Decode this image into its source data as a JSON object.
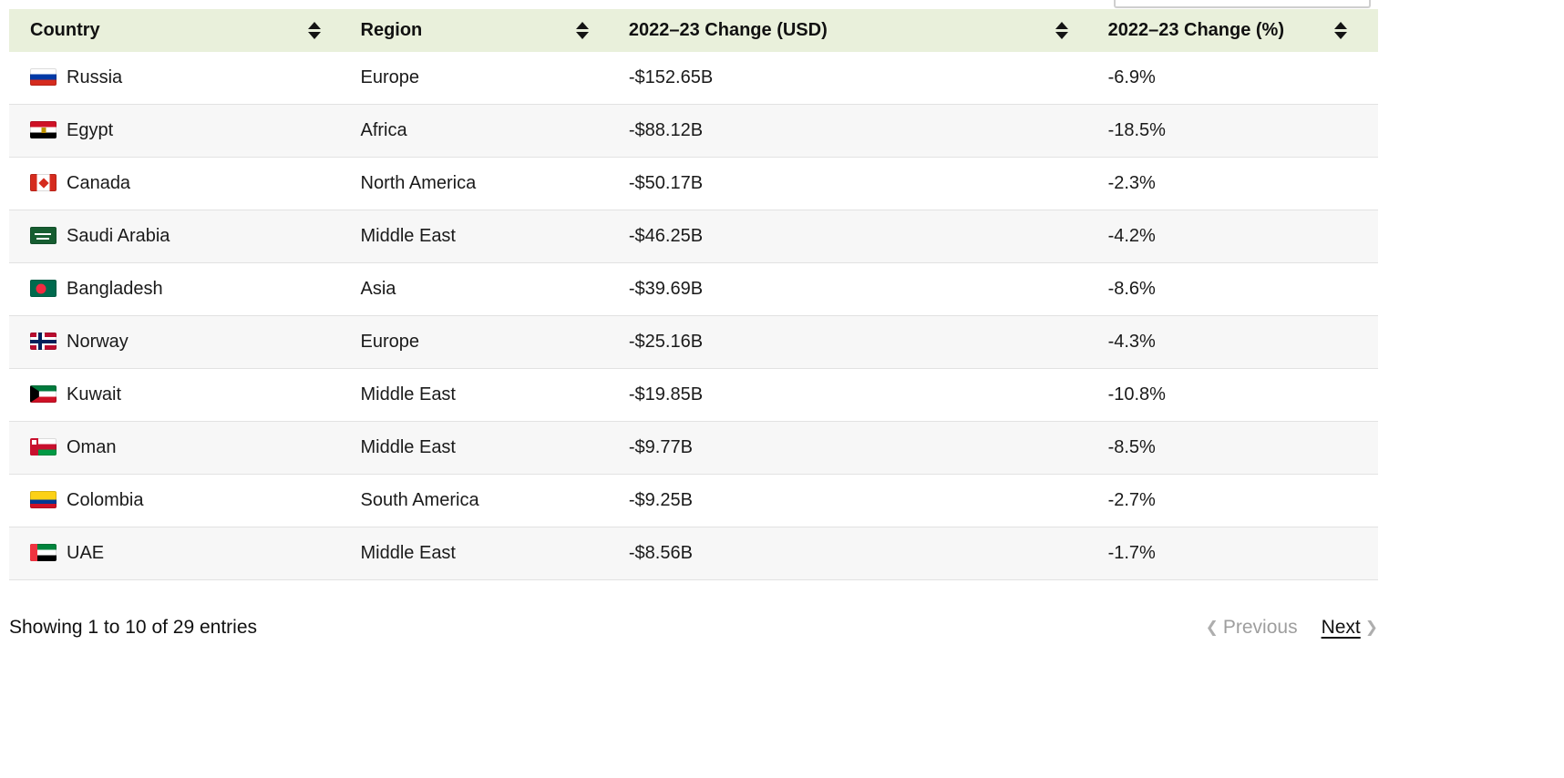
{
  "colors": {
    "header_bg": "#e9f0db",
    "stripe_bg": "#f7f7f7",
    "row_border": "#e2e2e2",
    "text": "#1a1a1a",
    "muted": "#9e9e9e"
  },
  "table": {
    "columns": [
      {
        "label": "Country",
        "sortable": true
      },
      {
        "label": "Region",
        "sortable": true
      },
      {
        "label": "2022–23 Change (USD)",
        "sortable": true
      },
      {
        "label": "2022–23 Change (%)",
        "sortable": true
      }
    ],
    "rows": [
      {
        "flag": "ru",
        "country": "Russia",
        "region": "Europe",
        "usd": "-$152.65B",
        "pct": "-6.9%"
      },
      {
        "flag": "eg",
        "country": "Egypt",
        "region": "Africa",
        "usd": "-$88.12B",
        "pct": "-18.5%"
      },
      {
        "flag": "ca",
        "country": "Canada",
        "region": "North America",
        "usd": "-$50.17B",
        "pct": "-2.3%"
      },
      {
        "flag": "sa",
        "country": "Saudi Arabia",
        "region": "Middle East",
        "usd": "-$46.25B",
        "pct": "-4.2%"
      },
      {
        "flag": "bd",
        "country": "Bangladesh",
        "region": "Asia",
        "usd": "-$39.69B",
        "pct": "-8.6%"
      },
      {
        "flag": "no",
        "country": "Norway",
        "region": "Europe",
        "usd": "-$25.16B",
        "pct": "-4.3%"
      },
      {
        "flag": "kw",
        "country": "Kuwait",
        "region": "Middle East",
        "usd": "-$19.85B",
        "pct": "-10.8%"
      },
      {
        "flag": "om",
        "country": "Oman",
        "region": "Middle East",
        "usd": "-$9.77B",
        "pct": "-8.5%"
      },
      {
        "flag": "co",
        "country": "Colombia",
        "region": "South America",
        "usd": "-$9.25B",
        "pct": "-2.7%"
      },
      {
        "flag": "ae",
        "country": "UAE",
        "region": "Middle East",
        "usd": "-$8.56B",
        "pct": "-1.7%"
      }
    ]
  },
  "pagination": {
    "summary": "Showing 1 to 10 of 29 entries",
    "previous_label": "Previous",
    "next_label": "Next",
    "prev_icon": "❮",
    "next_icon": "❯"
  }
}
